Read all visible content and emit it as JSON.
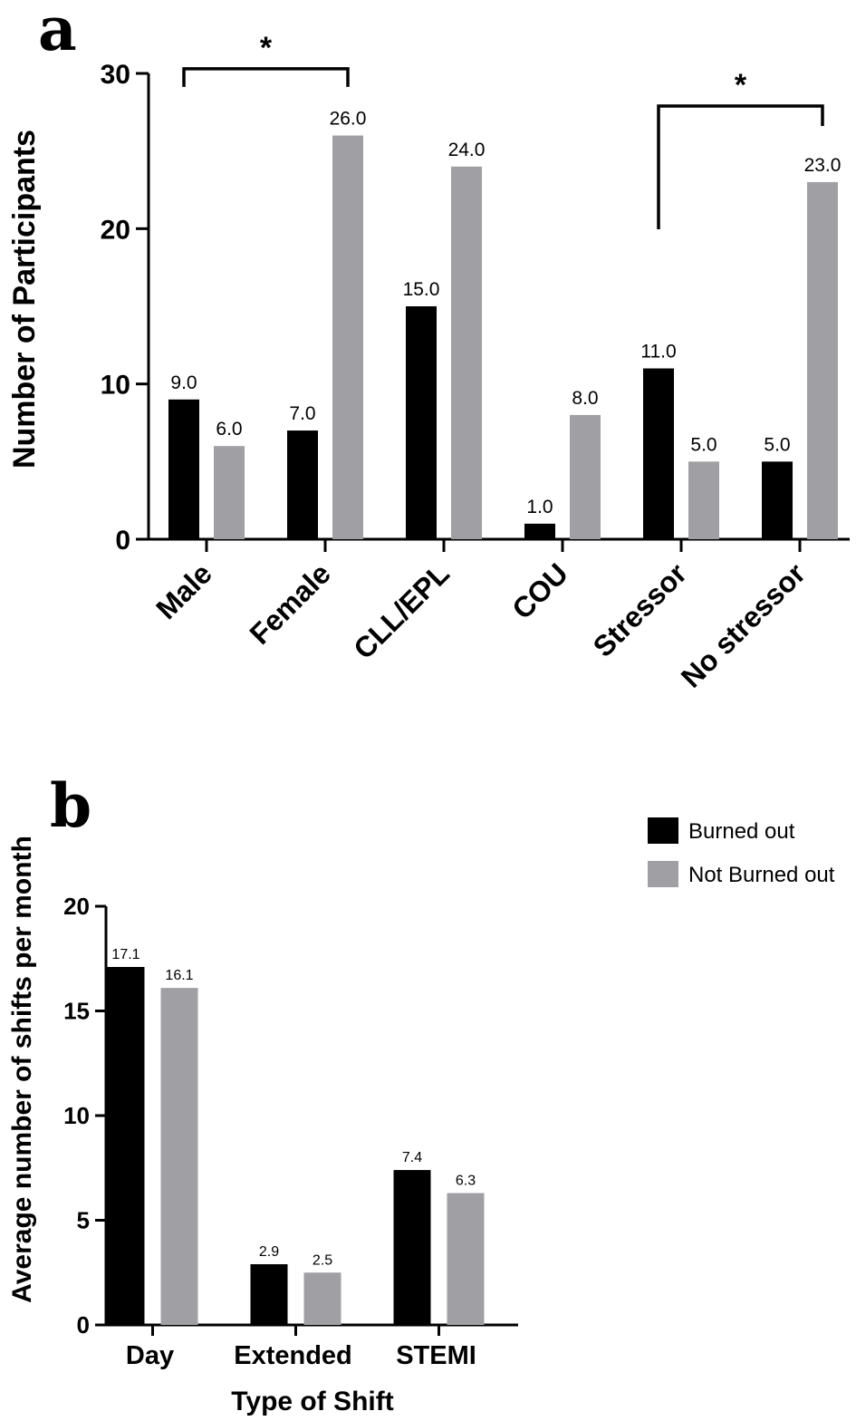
{
  "chart_data": [
    {
      "panel": "a",
      "type": "bar",
      "title": "",
      "xlabel": "",
      "ylabel": "Number of Participants",
      "ylim": [
        0,
        30
      ],
      "yticks": [
        0,
        10,
        20,
        30
      ],
      "categories": [
        "Male",
        "Female",
        "CLL/EPL",
        "COU",
        "Stressor",
        "No stressor"
      ],
      "series": [
        {
          "color": "#000000",
          "values": [
            9.0,
            7.0,
            15.0,
            1.0,
            11.0,
            5.0
          ],
          "labels": [
            "9.0",
            "7.0",
            "15.0",
            "1.0",
            "11.0",
            "5.0"
          ]
        },
        {
          "color": "#a0a0a4",
          "values": [
            6.0,
            26.0,
            24.0,
            8.0,
            5.0,
            23.0
          ],
          "labels": [
            "6.0",
            "26.0",
            "24.0",
            "8.0",
            "5.0",
            "23.0"
          ]
        }
      ],
      "significance": [
        {
          "label": "*",
          "from": {
            "category": 0,
            "series": 0
          },
          "to": {
            "category": 1,
            "series": 1
          },
          "level": 30.3
        },
        {
          "label": "*",
          "from": {
            "category": 4,
            "series": 0
          },
          "to": {
            "category": 5,
            "series": 1
          },
          "level": 27.9
        }
      ],
      "grid": false
    },
    {
      "panel": "b",
      "type": "bar",
      "title": "",
      "xlabel": "Type of Shift",
      "ylabel": "Average number of shifts per month",
      "ylim": [
        0,
        20
      ],
      "yticks": [
        0,
        5,
        10,
        15,
        20
      ],
      "categories": [
        "Day",
        "Extended",
        "STEMI"
      ],
      "series": [
        {
          "name": "Burned out",
          "color": "#000000",
          "values": [
            17.1,
            2.9,
            7.4
          ],
          "labels": [
            "17.1",
            "2.9",
            "7.4"
          ]
        },
        {
          "name": "Not Burned out",
          "color": "#a0a0a4",
          "values": [
            16.1,
            2.5,
            6.3
          ],
          "labels": [
            "16.1",
            "2.5",
            "6.3"
          ]
        }
      ],
      "legend": "top-right",
      "grid": false
    }
  ]
}
